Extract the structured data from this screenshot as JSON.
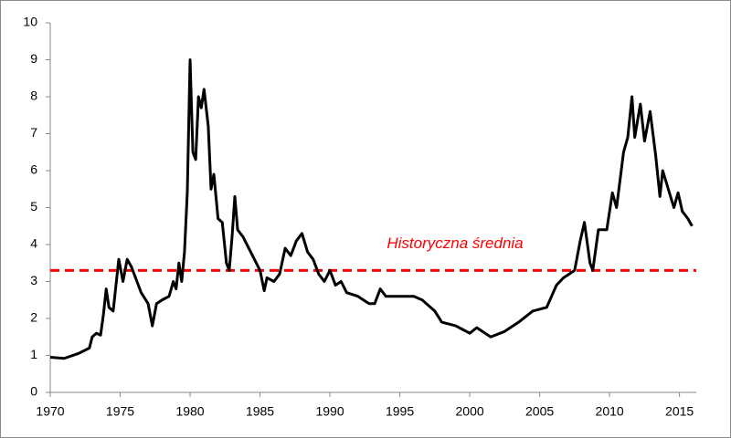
{
  "chart_data": {
    "type": "line",
    "x": [
      1970,
      1971,
      1972,
      1972.8,
      1973,
      1973.3,
      1973.6,
      1973.8,
      1974,
      1974.2,
      1974.5,
      1974.9,
      1975.2,
      1975.5,
      1975.8,
      1976,
      1976.5,
      1977,
      1977.3,
      1977.6,
      1978,
      1978.5,
      1978.8,
      1979,
      1979.2,
      1979.4,
      1979.6,
      1979.8,
      1980,
      1980.2,
      1980.4,
      1980.6,
      1980.8,
      1981,
      1981.3,
      1981.5,
      1981.7,
      1982,
      1982.3,
      1982.6,
      1982.8,
      1983,
      1983.2,
      1983.4,
      1983.8,
      1984.2,
      1984.6,
      1985,
      1985.3,
      1985.5,
      1986,
      1986.4,
      1986.8,
      1987.2,
      1987.6,
      1988,
      1988.4,
      1988.8,
      1989.2,
      1989.6,
      1990,
      1990.4,
      1990.8,
      1991.2,
      1992,
      1992.8,
      1993.2,
      1993.6,
      1994,
      1995,
      1996,
      1996.6,
      1997.5,
      1998,
      1999,
      2000,
      2000.5,
      2001.5,
      2002.5,
      2003.5,
      2004.5,
      2005.5,
      2006.2,
      2006.7,
      2007.5,
      2007.9,
      2008.2,
      2008.6,
      2008.8,
      2009.2,
      2009.8,
      2010.2,
      2010.5,
      2011,
      2011.3,
      2011.6,
      2011.8,
      2012.2,
      2012.5,
      2012.9,
      2013.3,
      2013.6,
      2013.8,
      2014.2,
      2014.6,
      2014.9,
      2015.2,
      2015.6,
      2015.9
    ],
    "values": [
      0.95,
      0.92,
      1.05,
      1.2,
      1.5,
      1.6,
      1.55,
      2.1,
      2.8,
      2.3,
      2.2,
      3.6,
      3.0,
      3.6,
      3.4,
      3.2,
      2.7,
      2.4,
      1.8,
      2.4,
      2.5,
      2.6,
      3.0,
      2.8,
      3.5,
      3.0,
      3.8,
      5.4,
      9.0,
      6.5,
      6.3,
      8.0,
      7.7,
      8.2,
      7.2,
      5.5,
      5.9,
      4.7,
      4.6,
      3.5,
      3.3,
      4.2,
      5.3,
      4.4,
      4.2,
      3.9,
      3.6,
      3.3,
      2.75,
      3.1,
      3.0,
      3.2,
      3.9,
      3.7,
      4.1,
      4.3,
      3.8,
      3.6,
      3.2,
      3.0,
      3.3,
      2.9,
      3.0,
      2.7,
      2.6,
      2.4,
      2.4,
      2.8,
      2.6,
      2.6,
      2.6,
      2.5,
      2.2,
      1.9,
      1.8,
      1.6,
      1.75,
      1.5,
      1.65,
      1.9,
      2.2,
      2.3,
      2.9,
      3.1,
      3.3,
      4.1,
      4.6,
      3.5,
      3.3,
      4.4,
      4.4,
      5.4,
      5.0,
      6.5,
      6.9,
      8.0,
      6.9,
      7.8,
      6.8,
      7.6,
      6.4,
      5.3,
      6.0,
      5.5,
      5.0,
      5.4,
      4.9,
      4.7,
      4.5
    ],
    "color": "#000000",
    "xlim": [
      1970,
      2016.2
    ],
    "xticks": [
      1970,
      1975,
      1980,
      1985,
      1990,
      1995,
      2000,
      2005,
      2010,
      2015
    ],
    "ylim": [
      0,
      10
    ],
    "yticks": [
      0,
      1,
      2,
      3,
      4,
      5,
      6,
      7,
      8,
      9,
      10
    ],
    "reference_line": {
      "value": 3.3,
      "label": "Historyczna średnia",
      "color": "#ff0000"
    }
  }
}
